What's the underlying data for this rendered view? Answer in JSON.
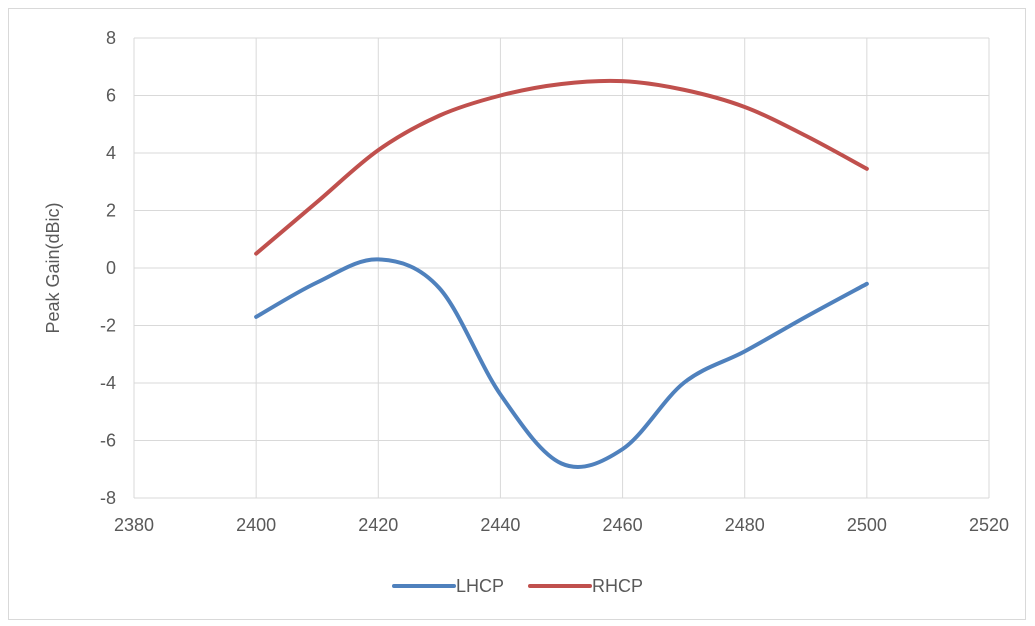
{
  "chart_data": {
    "type": "line",
    "title": "",
    "xlabel": "",
    "ylabel": "Peak Gain(dBic)",
    "xlim": [
      2380,
      2520
    ],
    "ylim": [
      -8,
      8
    ],
    "x_ticks": [
      2380,
      2400,
      2420,
      2440,
      2460,
      2480,
      2500,
      2520
    ],
    "y_ticks": [
      -8,
      -6,
      -4,
      -2,
      0,
      2,
      4,
      6,
      8
    ],
    "grid": true,
    "legend_position": "bottom",
    "series": [
      {
        "name": "LHCP",
        "color": "#4f81bd",
        "x": [
          2400,
          2410,
          2420,
          2430,
          2440,
          2450,
          2460,
          2470,
          2480,
          2490,
          2500
        ],
        "y": [
          -1.7,
          -0.5,
          0.3,
          -0.7,
          -4.4,
          -6.8,
          -6.3,
          -4.0,
          -2.9,
          -1.7,
          -0.55
        ]
      },
      {
        "name": "RHCP",
        "color": "#c0504d",
        "x": [
          2400,
          2410,
          2420,
          2430,
          2440,
          2450,
          2460,
          2470,
          2480,
          2490,
          2500
        ],
        "y": [
          0.5,
          2.3,
          4.1,
          5.3,
          6.0,
          6.4,
          6.5,
          6.2,
          5.6,
          4.6,
          3.45
        ]
      }
    ]
  }
}
